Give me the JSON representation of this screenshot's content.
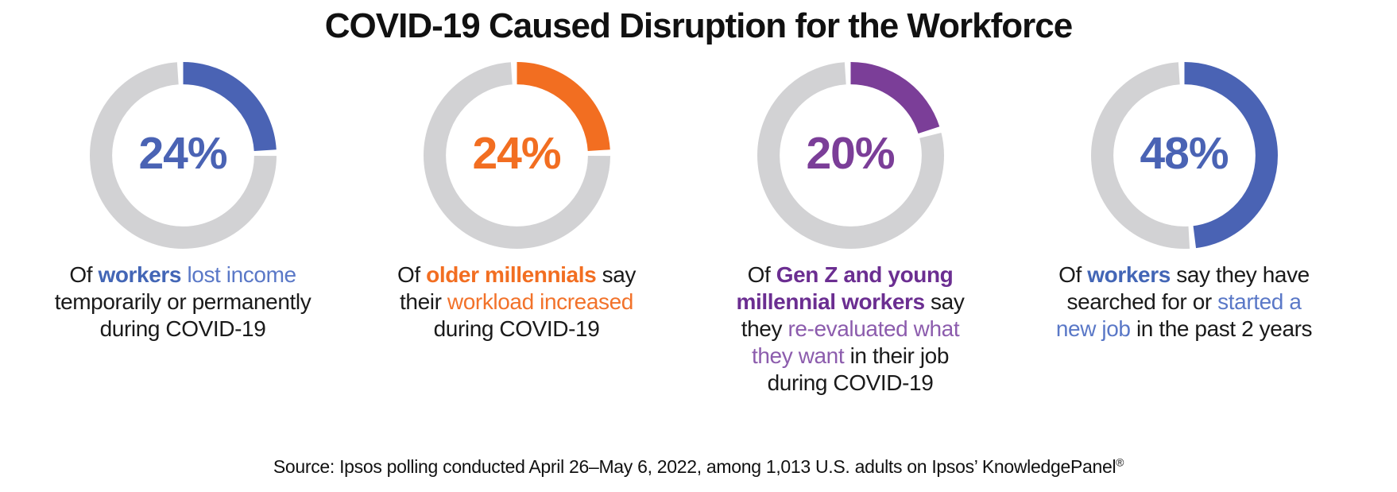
{
  "title": "COVID-19 Caused Disruption for the Workforce",
  "colors": {
    "gray_ring": "#d2d2d4",
    "body_text": "#1a1a1a",
    "blue": "#4a63b4",
    "blue_light": "#5a78c7",
    "orange": "#f26e21",
    "purple": "#7b3e98",
    "purple_dark": "#6b2e91",
    "purple_light": "#8c5cad"
  },
  "chart_data": {
    "type": "pie",
    "subtype": "donut",
    "title": "COVID-19 Caused Disruption for the Workforce",
    "legend_position": "none",
    "charts": [
      {
        "value": 24,
        "remainder": 76,
        "unit": "%",
        "color": "#4a63b4",
        "label": "Of workers lost income temporarily or permanently during COVID-19"
      },
      {
        "value": 24,
        "remainder": 76,
        "unit": "%",
        "color": "#f26e21",
        "label": "Of older millennials say their workload increased during COVID-19"
      },
      {
        "value": 20,
        "remainder": 80,
        "unit": "%",
        "color": "#7b3e98",
        "label": "Of Gen Z and young millennial workers say they re-evaluated what they want in their job during COVID-19"
      },
      {
        "value": 48,
        "remainder": 52,
        "unit": "%",
        "color": "#4a63b4",
        "label": "Of workers say they have searched for or started a new job in the past 2 years"
      }
    ]
  },
  "cards": [
    {
      "id": "workers-lost-income",
      "percent": 24,
      "percent_label": "24%",
      "accent": {
        "arc": "#4a63b4",
        "pct": "#4a63b4",
        "bold": "#4366b6",
        "light": "#5a78c7"
      },
      "caption_lines": [
        [
          {
            "t": "Of ",
            "s": "plain"
          },
          {
            "t": "workers",
            "s": "bold"
          },
          {
            "t": " ",
            "s": "plain"
          },
          {
            "t": "lost income",
            "s": "light"
          }
        ],
        [
          {
            "t": "temporarily or permanently",
            "s": "plain"
          }
        ],
        [
          {
            "t": "during COVID-19",
            "s": "plain"
          }
        ]
      ]
    },
    {
      "id": "older-millennials-workload",
      "percent": 24,
      "percent_label": "24%",
      "accent": {
        "arc": "#f26e21",
        "pct": "#f26e21",
        "bold": "#f26e21",
        "light": "#f2722a"
      },
      "caption_lines": [
        [
          {
            "t": "Of ",
            "s": "plain"
          },
          {
            "t": "older millennials",
            "s": "bold"
          },
          {
            "t": " say",
            "s": "plain"
          }
        ],
        [
          {
            "t": "their ",
            "s": "plain"
          },
          {
            "t": "workload increased",
            "s": "light"
          }
        ],
        [
          {
            "t": "during COVID-19",
            "s": "plain"
          }
        ]
      ]
    },
    {
      "id": "genz-young-millennials-reevaluated",
      "percent": 20,
      "percent_label": "20%",
      "accent": {
        "arc": "#7b3e98",
        "pct": "#7b3e98",
        "bold": "#6b2e91",
        "light": "#8c5cad"
      },
      "caption_lines": [
        [
          {
            "t": "Of ",
            "s": "plain"
          },
          {
            "t": "Gen Z and young",
            "s": "bold"
          }
        ],
        [
          {
            "t": "millennial workers",
            "s": "bold"
          },
          {
            "t": " say",
            "s": "plain"
          }
        ],
        [
          {
            "t": "they ",
            "s": "plain"
          },
          {
            "t": "re-evaluated what",
            "s": "light"
          }
        ],
        [
          {
            "t": "they want",
            "s": "light"
          },
          {
            "t": " in their job",
            "s": "plain"
          }
        ],
        [
          {
            "t": "during COVID-19",
            "s": "plain"
          }
        ]
      ]
    },
    {
      "id": "workers-new-job",
      "percent": 48,
      "percent_label": "48%",
      "accent": {
        "arc": "#4a63b4",
        "pct": "#4a63b4",
        "bold": "#4366b6",
        "light": "#5a78c7"
      },
      "caption_lines": [
        [
          {
            "t": "Of ",
            "s": "plain"
          },
          {
            "t": "workers",
            "s": "bold"
          },
          {
            "t": " say they have",
            "s": "plain"
          }
        ],
        [
          {
            "t": "searched for or ",
            "s": "plain"
          },
          {
            "t": "started a",
            "s": "light"
          }
        ],
        [
          {
            "t": "new job",
            "s": "light"
          },
          {
            "t": " in the past 2 years",
            "s": "plain"
          }
        ]
      ]
    }
  ],
  "source": {
    "text": "Source: Ipsos polling conducted April 26–May 6, 2022, among 1,013 U.S. adults on Ipsos’ KnowledgePanel",
    "mark": "®"
  }
}
